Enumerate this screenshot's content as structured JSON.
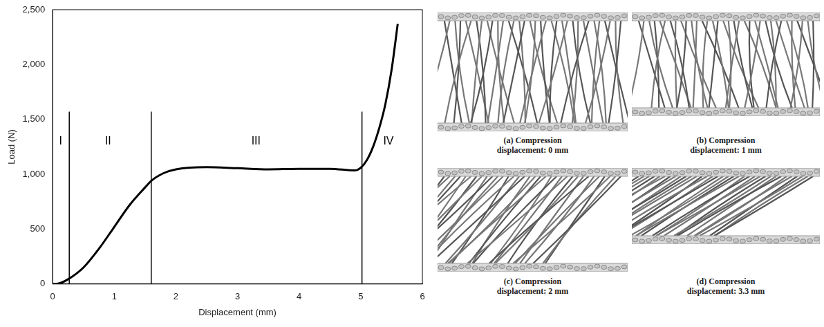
{
  "chart_data": {
    "type": "line",
    "xlabel": "Displacement (mm)",
    "ylabel": "Load (N)",
    "x": [
      0,
      0.1,
      0.27,
      0.5,
      0.75,
      1.0,
      1.25,
      1.5,
      1.6,
      1.8,
      2.0,
      2.5,
      3.0,
      3.5,
      4.0,
      4.5,
      4.9,
      5.0,
      5.1,
      5.2,
      5.3,
      5.4,
      5.5,
      5.6
    ],
    "values": [
      0,
      5,
      50,
      150,
      320,
      520,
      720,
      880,
      940,
      1010,
      1045,
      1065,
      1055,
      1045,
      1050,
      1050,
      1035,
      1060,
      1130,
      1250,
      1420,
      1640,
      1950,
      2370
    ],
    "color": "#000000",
    "xlim": [
      0,
      6
    ],
    "xticks": [
      0,
      1,
      2,
      3,
      4,
      5,
      6
    ],
    "ylim": [
      0,
      2500
    ],
    "yticks": [
      0,
      500,
      1000,
      1500,
      2000,
      2500
    ],
    "grid": false,
    "boundaries": [
      0.27,
      1.6,
      5.02
    ],
    "boundary_range": [
      0,
      1570
    ],
    "annotations": [
      {
        "text": "I",
        "x": 0.13,
        "y": 1300
      },
      {
        "text": "II",
        "x": 0.9,
        "y": 1300
      },
      {
        "text": "III",
        "x": 3.3,
        "y": 1300
      },
      {
        "text": "IV",
        "x": 5.45,
        "y": 1300
      }
    ]
  },
  "panels": [
    {
      "caption": "(a) Compression displacement: 0 mm"
    },
    {
      "caption": "(b) Compression displacement: 1 mm"
    },
    {
      "caption": "(c) Compression displacement: 2 mm"
    },
    {
      "caption": "(d) Compression displacement: 3.3 mm"
    }
  ]
}
